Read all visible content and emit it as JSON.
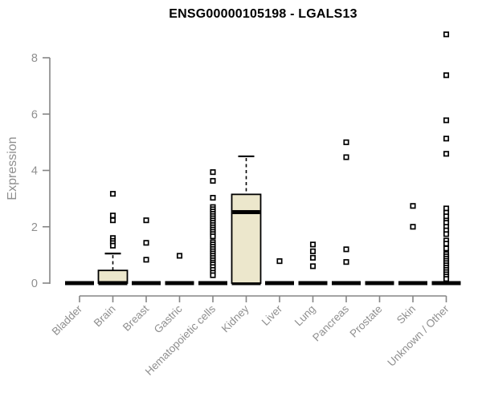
{
  "chart_data": {
    "type": "boxplot",
    "title": "ENSG00000105198 - LGALS13",
    "ylabel": "Expression",
    "xlabel": "",
    "yticks": [
      0,
      2,
      4,
      6,
      8
    ],
    "ylim": [
      0,
      9.2
    ],
    "grid": false,
    "legend": "none",
    "categories": [
      "Bladder",
      "Brain",
      "Breast",
      "Gastric",
      "Hematopoietic cells",
      "Kidney",
      "Liver",
      "Lung",
      "Pancreas",
      "Prostate",
      "Skin",
      "Unknown / Other"
    ],
    "boxes": [
      {
        "category": "Bladder",
        "median": 0,
        "q1": 0,
        "q3": 0,
        "whisker_low": 0,
        "whisker_high": 0,
        "outliers": []
      },
      {
        "category": "Brain",
        "median": 0,
        "q1": 0,
        "q3": 0.45,
        "whisker_low": 0,
        "whisker_high": 1.05,
        "outliers": [
          3.17,
          2.4,
          2.23,
          1.6,
          1.5,
          1.42,
          1.33
        ]
      },
      {
        "category": "Breast",
        "median": 0,
        "q1": 0,
        "q3": 0,
        "whisker_low": 0,
        "whisker_high": 0,
        "outliers": [
          2.23,
          1.43,
          0.83
        ]
      },
      {
        "category": "Gastric",
        "median": 0,
        "q1": 0,
        "q3": 0,
        "whisker_low": 0,
        "whisker_high": 0,
        "outliers": [
          0.97
        ]
      },
      {
        "category": "Hematopoietic cells",
        "median": 0,
        "q1": 0,
        "q3": 0,
        "whisker_low": 0,
        "whisker_high": 0,
        "outliers": [
          3.94,
          3.63,
          3.03,
          2.7,
          2.62,
          2.54,
          2.46,
          2.38,
          2.3,
          2.22,
          2.14,
          2.06,
          1.98,
          1.9,
          1.82,
          1.74,
          1.66,
          1.45,
          1.37,
          1.29,
          1.21,
          1.13,
          1.05,
          0.97,
          0.89,
          0.81,
          0.73,
          0.66,
          0.57,
          0.47,
          0.37,
          0.28
        ]
      },
      {
        "category": "Kidney",
        "median": 2.52,
        "q1": 0,
        "q3": 3.15,
        "whisker_low": 0,
        "whisker_high": 4.5,
        "outliers": []
      },
      {
        "category": "Liver",
        "median": 0,
        "q1": 0,
        "q3": 0,
        "whisker_low": 0,
        "whisker_high": 0,
        "outliers": [
          0.78
        ]
      },
      {
        "category": "Lung",
        "median": 0,
        "q1": 0,
        "q3": 0,
        "whisker_low": 0,
        "whisker_high": 0,
        "outliers": [
          1.37,
          1.13,
          0.9,
          0.6
        ]
      },
      {
        "category": "Pancreas",
        "median": 0,
        "q1": 0,
        "q3": 0,
        "whisker_low": 0,
        "whisker_high": 0,
        "outliers": [
          5.0,
          4.47,
          1.2,
          0.75
        ]
      },
      {
        "category": "Prostate",
        "median": 0,
        "q1": 0,
        "q3": 0,
        "whisker_low": 0,
        "whisker_high": 0,
        "outliers": []
      },
      {
        "category": "Skin",
        "median": 0,
        "q1": 0,
        "q3": 0,
        "whisker_low": 0,
        "whisker_high": 0,
        "outliers": [
          2.74,
          2.0
        ]
      },
      {
        "category": "Unknown / Other",
        "median": 0,
        "q1": 0,
        "q3": 0,
        "whisker_low": 0,
        "whisker_high": 0,
        "outliers": [
          8.83,
          7.38,
          5.78,
          5.13,
          4.59,
          2.65,
          2.5,
          2.37,
          2.22,
          2.14,
          2.0,
          1.87,
          1.74,
          1.51,
          1.4,
          1.23,
          1.03,
          0.95,
          0.87,
          0.79,
          0.71,
          0.63,
          0.55,
          0.47,
          0.39,
          0.31,
          0.23,
          0.15
        ]
      }
    ],
    "colors": {
      "background": "#ffffff",
      "box_fill": "#ece7cc",
      "box_stroke": "#000000",
      "median": "#000000",
      "collapsed_bar": "#000000",
      "whisker": "#000000",
      "outlier_fill": "#ffffff",
      "outlier_stroke": "#000000",
      "axis": "#858585",
      "tick_text": "#8f8f8f",
      "title_text": "#000000"
    }
  }
}
